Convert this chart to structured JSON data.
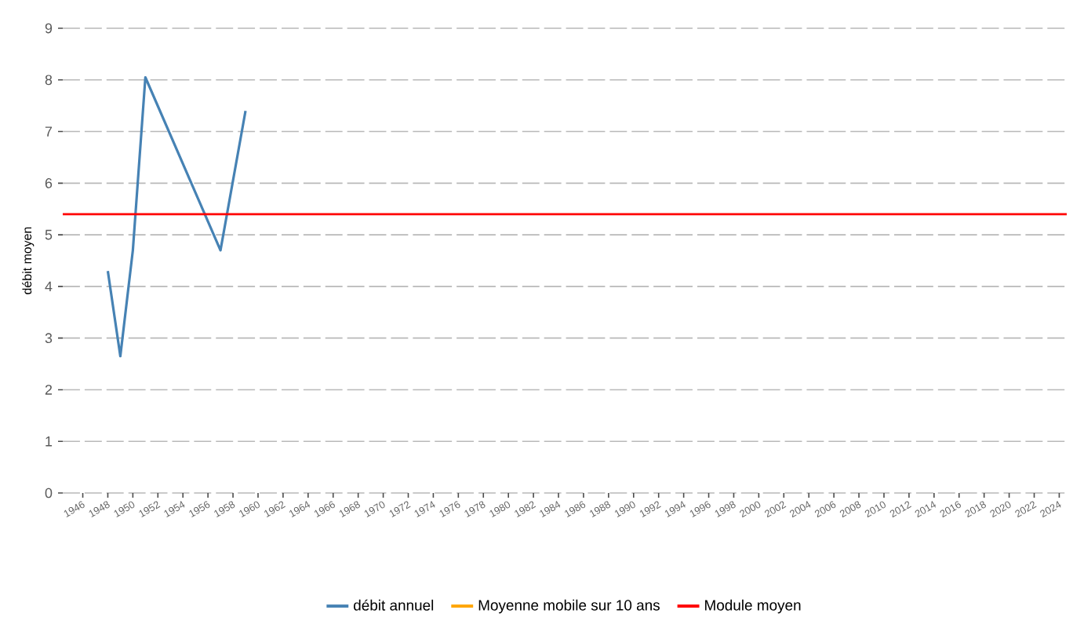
{
  "chart_data": {
    "type": "line",
    "ylabel": "débit moyen",
    "xlim": [
      1944.4,
      2024.6
    ],
    "xticks": [
      1946,
      1948,
      1950,
      1952,
      1954,
      1956,
      1958,
      1960,
      1962,
      1964,
      1966,
      1968,
      1970,
      1972,
      1974,
      1976,
      1978,
      1980,
      1982,
      1984,
      1986,
      1988,
      1990,
      1992,
      1994,
      1996,
      1998,
      2000,
      2002,
      2004,
      2006,
      2008,
      2010,
      2012,
      2014,
      2016,
      2018,
      2020,
      2022,
      2024
    ],
    "ylim": [
      0,
      9
    ],
    "yticks": [
      0,
      1,
      2,
      3,
      4,
      5,
      6,
      7,
      8,
      9
    ],
    "series": [
      {
        "name": "débit annuel",
        "color": "#4682b4",
        "x": [
          1948,
          1949,
          1950,
          1951,
          1957,
          1959
        ],
        "values": [
          4.3,
          2.65,
          4.7,
          8.05,
          4.7,
          7.4
        ]
      },
      {
        "name": "Moyenne mobile sur 10 ans",
        "color": "#ffa500",
        "values": [
          null
        ]
      }
    ],
    "ref_lines": [
      {
        "axis": "y",
        "value": 5.4,
        "label": "Module moyen",
        "color": "#ff0000"
      }
    ],
    "grid": "y",
    "legend": "bottom",
    "line_style": "solid",
    "marker": "none"
  }
}
